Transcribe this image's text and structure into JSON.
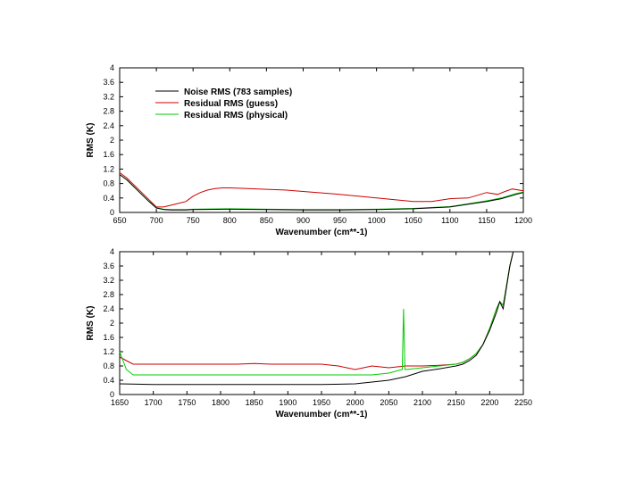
{
  "colors": {
    "noise": "#000000",
    "guess": "#cc0000",
    "physical": "#00cc00",
    "axis": "#000000"
  },
  "chart_data": [
    {
      "type": "line",
      "xlabel": "Wavenumber (cm**-1)",
      "ylabel": "RMS (K)",
      "xlim": [
        650,
        1200
      ],
      "ylim": [
        0,
        4
      ],
      "xticks": [
        "650",
        "700",
        "750",
        "800",
        "850",
        "900",
        "950",
        "1000",
        "1050",
        "1100",
        "1150",
        "1200"
      ],
      "yticks": [
        "0",
        "0.4",
        "0.8",
        "1.2",
        "1.6",
        "2",
        "2.4",
        "2.8",
        "3.2",
        "3.6",
        "4"
      ],
      "ytick_labels_shown": [
        "0",
        "0.4",
        "0.8",
        "1.2",
        "1.6",
        "2",
        "2.4",
        "2.8",
        "3.2",
        "3.6",
        "4"
      ],
      "legend": {
        "placement": "top-left",
        "entries": [
          "Noise RMS (783 samples)",
          "Residual RMS (guess)",
          "Residual RMS (physical)"
        ]
      },
      "series": [
        {
          "name": "Noise RMS (783 samples)",
          "color": "#000000",
          "x": [
            650,
            660,
            670,
            680,
            690,
            700,
            710,
            720,
            730,
            740,
            750,
            800,
            850,
            900,
            950,
            1000,
            1050,
            1100,
            1150,
            1170,
            1190,
            1200
          ],
          "y": [
            1.05,
            0.9,
            0.7,
            0.5,
            0.3,
            0.12,
            0.08,
            0.07,
            0.07,
            0.07,
            0.08,
            0.09,
            0.08,
            0.07,
            0.07,
            0.08,
            0.1,
            0.15,
            0.3,
            0.38,
            0.5,
            0.55
          ]
        },
        {
          "name": "Residual RMS (guess)",
          "color": "#cc0000",
          "x": [
            650,
            660,
            670,
            680,
            690,
            700,
            710,
            720,
            730,
            740,
            750,
            760,
            770,
            780,
            790,
            800,
            825,
            850,
            875,
            900,
            925,
            950,
            975,
            1000,
            1025,
            1050,
            1075,
            1100,
            1125,
            1150,
            1165,
            1175,
            1185,
            1200
          ],
          "y": [
            1.1,
            0.95,
            0.75,
            0.55,
            0.35,
            0.15,
            0.15,
            0.2,
            0.25,
            0.3,
            0.45,
            0.55,
            0.62,
            0.66,
            0.68,
            0.68,
            0.66,
            0.64,
            0.62,
            0.58,
            0.54,
            0.5,
            0.45,
            0.4,
            0.35,
            0.3,
            0.3,
            0.38,
            0.4,
            0.55,
            0.5,
            0.58,
            0.65,
            0.6
          ]
        },
        {
          "name": "Residual RMS (physical)",
          "color": "#00cc00",
          "x": [
            650,
            660,
            670,
            680,
            690,
            700,
            710,
            720,
            730,
            740,
            750,
            800,
            850,
            900,
            950,
            1000,
            1050,
            1100,
            1150,
            1170,
            1190,
            1200
          ],
          "y": [
            1.05,
            0.9,
            0.7,
            0.5,
            0.3,
            0.13,
            0.09,
            0.08,
            0.08,
            0.08,
            0.09,
            0.1,
            0.09,
            0.08,
            0.08,
            0.09,
            0.11,
            0.16,
            0.32,
            0.4,
            0.52,
            0.56
          ]
        }
      ]
    },
    {
      "type": "line",
      "xlabel": "Wavenumber (cm**-1)",
      "ylabel": "RMS (K)",
      "xlim": [
        1650,
        2250
      ],
      "ylim": [
        0,
        4
      ],
      "xticks": [
        "1650",
        "1700",
        "1750",
        "1800",
        "1850",
        "1900",
        "1950",
        "2000",
        "2050",
        "2100",
        "2150",
        "2200",
        "2250"
      ],
      "yticks": [
        "0",
        "0.4",
        "0.8",
        "1.2",
        "1.6",
        "2",
        "2.4",
        "2.8",
        "3.2",
        "3.6",
        "4"
      ],
      "ytick_labels_shown": [
        "0",
        "0.4",
        "0.8",
        "1.2",
        "1.6",
        "2",
        "2.4",
        "2.8",
        "3.2",
        "3.6",
        "4"
      ],
      "series": [
        {
          "name": "Noise RMS (783 samples)",
          "color": "#000000",
          "x": [
            1650,
            1700,
            1750,
            1800,
            1850,
            1900,
            1950,
            2000,
            2050,
            2075,
            2100,
            2125,
            2150,
            2160,
            2170,
            2180,
            2190,
            2200,
            2210,
            2215,
            2220,
            2230,
            2235
          ],
          "y": [
            0.3,
            0.28,
            0.28,
            0.28,
            0.28,
            0.28,
            0.28,
            0.3,
            0.4,
            0.5,
            0.65,
            0.72,
            0.8,
            0.85,
            0.95,
            1.1,
            1.4,
            1.8,
            2.3,
            2.6,
            2.4,
            3.6,
            4.0
          ]
        },
        {
          "name": "Residual RMS (guess)",
          "color": "#cc0000",
          "x": [
            1650,
            1660,
            1670,
            1680,
            1700,
            1725,
            1750,
            1775,
            1800,
            1825,
            1850,
            1875,
            1900,
            1925,
            1950,
            1975,
            2000,
            2025,
            2050,
            2075,
            2100,
            2125,
            2150,
            2160,
            2170,
            2180,
            2190,
            2200,
            2210,
            2215,
            2220,
            2230,
            2235
          ],
          "y": [
            1.05,
            0.95,
            0.85,
            0.85,
            0.85,
            0.85,
            0.85,
            0.85,
            0.85,
            0.85,
            0.87,
            0.85,
            0.85,
            0.85,
            0.85,
            0.8,
            0.7,
            0.8,
            0.75,
            0.8,
            0.8,
            0.82,
            0.85,
            0.9,
            1.0,
            1.15,
            1.4,
            1.85,
            2.4,
            2.6,
            2.5,
            3.6,
            4.0
          ]
        },
        {
          "name": "Residual RMS (physical)",
          "color": "#00cc00",
          "x": [
            1650,
            1660,
            1670,
            1680,
            1700,
            1725,
            1750,
            1775,
            1800,
            1825,
            1850,
            1875,
            1900,
            1925,
            1950,
            1975,
            2000,
            2025,
            2050,
            2070,
            2072,
            2074,
            2076,
            2100,
            2125,
            2150,
            2160,
            2170,
            2180,
            2190,
            2200,
            2210,
            2215,
            2220,
            2230,
            2235
          ],
          "y": [
            1.2,
            0.7,
            0.55,
            0.55,
            0.55,
            0.55,
            0.55,
            0.55,
            0.55,
            0.55,
            0.55,
            0.55,
            0.55,
            0.55,
            0.55,
            0.55,
            0.55,
            0.55,
            0.6,
            0.7,
            2.4,
            0.7,
            0.7,
            0.75,
            0.8,
            0.85,
            0.9,
            1.0,
            1.15,
            1.4,
            1.85,
            2.4,
            2.6,
            2.5,
            3.6,
            4.0
          ]
        }
      ]
    }
  ]
}
